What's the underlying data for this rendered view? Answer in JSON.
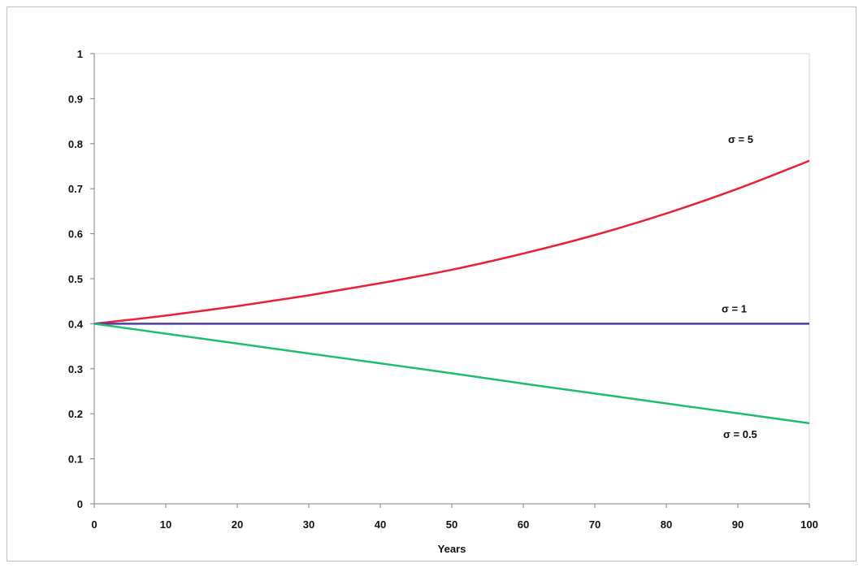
{
  "chart_data": {
    "type": "line",
    "title": "",
    "xlabel": "Years",
    "ylabel": "",
    "xlim": [
      0,
      100
    ],
    "ylim": [
      0,
      1
    ],
    "xticks": [
      0,
      10,
      20,
      30,
      40,
      50,
      60,
      70,
      80,
      90,
      100
    ],
    "yticks": [
      0,
      0.1,
      0.2,
      0.3,
      0.4,
      0.5,
      0.6,
      0.7,
      0.8,
      0.9,
      1
    ],
    "grid": false,
    "legend": "none",
    "x": [
      0,
      10,
      20,
      30,
      40,
      50,
      60,
      70,
      80,
      90,
      100
    ],
    "series": [
      {
        "name": "σ = 5",
        "color": "#e8203a",
        "values": [
          0.4,
          0.418,
          0.439,
          0.463,
          0.49,
          0.52,
          0.556,
          0.597,
          0.645,
          0.7,
          0.762
        ]
      },
      {
        "name": "σ = 1",
        "color": "#4b3fa0",
        "values": [
          0.4,
          0.4,
          0.4,
          0.4,
          0.4,
          0.4,
          0.4,
          0.4,
          0.4,
          0.4,
          0.4
        ]
      },
      {
        "name": "σ = 0.5",
        "color": "#1fbf6a",
        "values": [
          0.4,
          0.378,
          0.356,
          0.334,
          0.312,
          0.29,
          0.267,
          0.245,
          0.223,
          0.201,
          0.179
        ]
      }
    ]
  }
}
